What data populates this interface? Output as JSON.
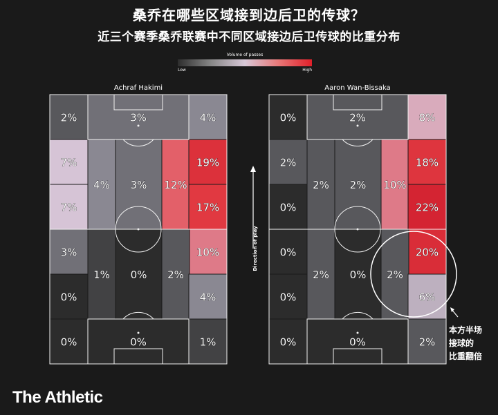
{
  "header": {
    "title": "桑乔在哪些区域接到边后卫的传球？",
    "subtitle": "近三个赛季桑乔联赛中不同区域接边后卫传球的比重分布"
  },
  "legend": {
    "title": "Volume of passes",
    "low": "Low",
    "high": "High"
  },
  "direction_label": "Direction of play",
  "annotation": {
    "lines": [
      "本方半场",
      "接球的",
      "比重翻倍"
    ]
  },
  "brand": "The Athletic",
  "colors": {
    "background": "#1a1a1a",
    "low": "#2d2d2d",
    "high": "#e0202a"
  },
  "chart_data": [
    {
      "type": "heatmap",
      "title": "Achraf Hakimi",
      "unit": "%",
      "zones": [
        {
          "zone": "r1c1",
          "value": 2
        },
        {
          "zone": "r1c2",
          "value": 3
        },
        {
          "zone": "r1c3",
          "value": 4
        },
        {
          "zone": "r2c1",
          "value": 7
        },
        {
          "zone": "r3c1",
          "value": 7
        },
        {
          "zone": "m1c2",
          "value": 4
        },
        {
          "zone": "m1c3",
          "value": 3
        },
        {
          "zone": "m1c4",
          "value": 12
        },
        {
          "zone": "r2c5",
          "value": 19
        },
        {
          "zone": "r3c5",
          "value": 17
        },
        {
          "zone": "r4c1",
          "value": 3
        },
        {
          "zone": "r4c5",
          "value": 10
        },
        {
          "zone": "m2c2",
          "value": 1
        },
        {
          "zone": "m2c3",
          "value": 0
        },
        {
          "zone": "m2c4",
          "value": 2
        },
        {
          "zone": "r5c1",
          "value": 0
        },
        {
          "zone": "r5c5",
          "value": 4
        },
        {
          "zone": "r6c1",
          "value": 0
        },
        {
          "zone": "r6c2",
          "value": 0
        },
        {
          "zone": "r6c3",
          "value": 1
        }
      ]
    },
    {
      "type": "heatmap",
      "title": "Aaron Wan-Bissaka",
      "unit": "%",
      "zones": [
        {
          "zone": "r1c1",
          "value": 0
        },
        {
          "zone": "r1c2",
          "value": 2
        },
        {
          "zone": "r1c3",
          "value": 8
        },
        {
          "zone": "r2c1",
          "value": 2
        },
        {
          "zone": "r3c1",
          "value": 0
        },
        {
          "zone": "m1c2",
          "value": 2
        },
        {
          "zone": "m1c3",
          "value": 2
        },
        {
          "zone": "m1c4",
          "value": 10
        },
        {
          "zone": "r2c5",
          "value": 18
        },
        {
          "zone": "r3c5",
          "value": 22
        },
        {
          "zone": "r4c1",
          "value": 0
        },
        {
          "zone": "r4c5",
          "value": 20
        },
        {
          "zone": "m2c2",
          "value": 2
        },
        {
          "zone": "m2c3",
          "value": 0
        },
        {
          "zone": "m2c4",
          "value": 2
        },
        {
          "zone": "r5c1",
          "value": 0
        },
        {
          "zone": "r5c5",
          "value": 6
        },
        {
          "zone": "r6c1",
          "value": 0
        },
        {
          "zone": "r6c2",
          "value": 0
        },
        {
          "zone": "r6c3",
          "value": 2
        }
      ]
    }
  ]
}
